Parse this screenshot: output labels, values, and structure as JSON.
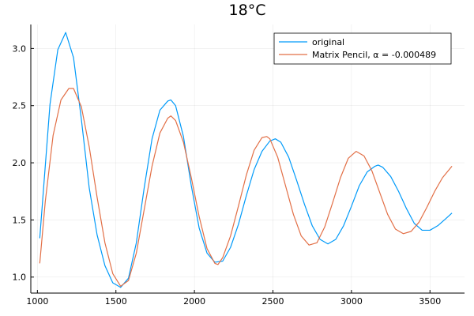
{
  "chart_data": {
    "type": "line",
    "title": "18°C",
    "xlabel": "",
    "ylabel": "",
    "xlim": [
      958,
      3720
    ],
    "ylim": [
      0.86,
      3.21
    ],
    "x_ticks": [
      1000,
      1500,
      2000,
      2500,
      3000,
      3500
    ],
    "y_ticks": [
      1.0,
      1.5,
      2.0,
      2.5,
      3.0
    ],
    "x_tick_labels": [
      "1000",
      "1500",
      "2000",
      "2500",
      "3000",
      "3500"
    ],
    "y_tick_labels": [
      "1.0",
      "1.5",
      "2.0",
      "2.5",
      "3.0"
    ],
    "grid": true,
    "legend_position": "top-right",
    "series": [
      {
        "name": "original",
        "color": "#009af9",
        "x": [
          1015,
          1080,
          1130,
          1180,
          1230,
          1280,
          1330,
          1380,
          1430,
          1480,
          1530,
          1580,
          1630,
          1680,
          1730,
          1780,
          1830,
          1850,
          1880,
          1930,
          1980,
          2030,
          2080,
          2130,
          2180,
          2230,
          2280,
          2330,
          2380,
          2430,
          2480,
          2515,
          2550,
          2600,
          2650,
          2700,
          2750,
          2800,
          2850,
          2900,
          2950,
          3000,
          3050,
          3100,
          3150,
          3170,
          3200,
          3250,
          3300,
          3350,
          3400,
          3450,
          3500,
          3550,
          3600,
          3640
        ],
        "y": [
          1.34,
          2.51,
          2.99,
          3.14,
          2.92,
          2.38,
          1.78,
          1.37,
          1.1,
          0.95,
          0.91,
          0.99,
          1.3,
          1.78,
          2.21,
          2.46,
          2.54,
          2.55,
          2.5,
          2.23,
          1.8,
          1.43,
          1.21,
          1.13,
          1.14,
          1.26,
          1.46,
          1.71,
          1.94,
          2.1,
          2.19,
          2.21,
          2.18,
          2.05,
          1.85,
          1.64,
          1.45,
          1.33,
          1.29,
          1.33,
          1.45,
          1.62,
          1.8,
          1.92,
          1.97,
          1.98,
          1.96,
          1.88,
          1.75,
          1.6,
          1.47,
          1.41,
          1.41,
          1.45,
          1.51,
          1.56
        ]
      },
      {
        "name": "Matrix Pencil, α = -0.000489",
        "color": "#e26f46",
        "x": [
          1015,
          1050,
          1100,
          1150,
          1200,
          1230,
          1280,
          1330,
          1380,
          1430,
          1480,
          1530,
          1580,
          1630,
          1680,
          1730,
          1780,
          1830,
          1850,
          1880,
          1930,
          1980,
          2030,
          2080,
          2130,
          2150,
          2180,
          2230,
          2280,
          2330,
          2380,
          2430,
          2460,
          2480,
          2530,
          2580,
          2630,
          2680,
          2730,
          2780,
          2830,
          2880,
          2930,
          2980,
          3030,
          3080,
          3130,
          3180,
          3230,
          3280,
          3330,
          3380,
          3430,
          3480,
          3530,
          3580,
          3640
        ],
        "y": [
          1.12,
          1.66,
          2.24,
          2.55,
          2.65,
          2.65,
          2.49,
          2.14,
          1.7,
          1.3,
          1.03,
          0.92,
          0.97,
          1.21,
          1.59,
          1.97,
          2.26,
          2.39,
          2.41,
          2.37,
          2.18,
          1.87,
          1.53,
          1.25,
          1.12,
          1.11,
          1.17,
          1.36,
          1.62,
          1.89,
          2.11,
          2.22,
          2.23,
          2.21,
          2.05,
          1.8,
          1.55,
          1.36,
          1.28,
          1.3,
          1.44,
          1.65,
          1.87,
          2.04,
          2.1,
          2.06,
          1.93,
          1.74,
          1.55,
          1.42,
          1.38,
          1.4,
          1.48,
          1.61,
          1.75,
          1.87,
          1.97
        ]
      }
    ]
  }
}
